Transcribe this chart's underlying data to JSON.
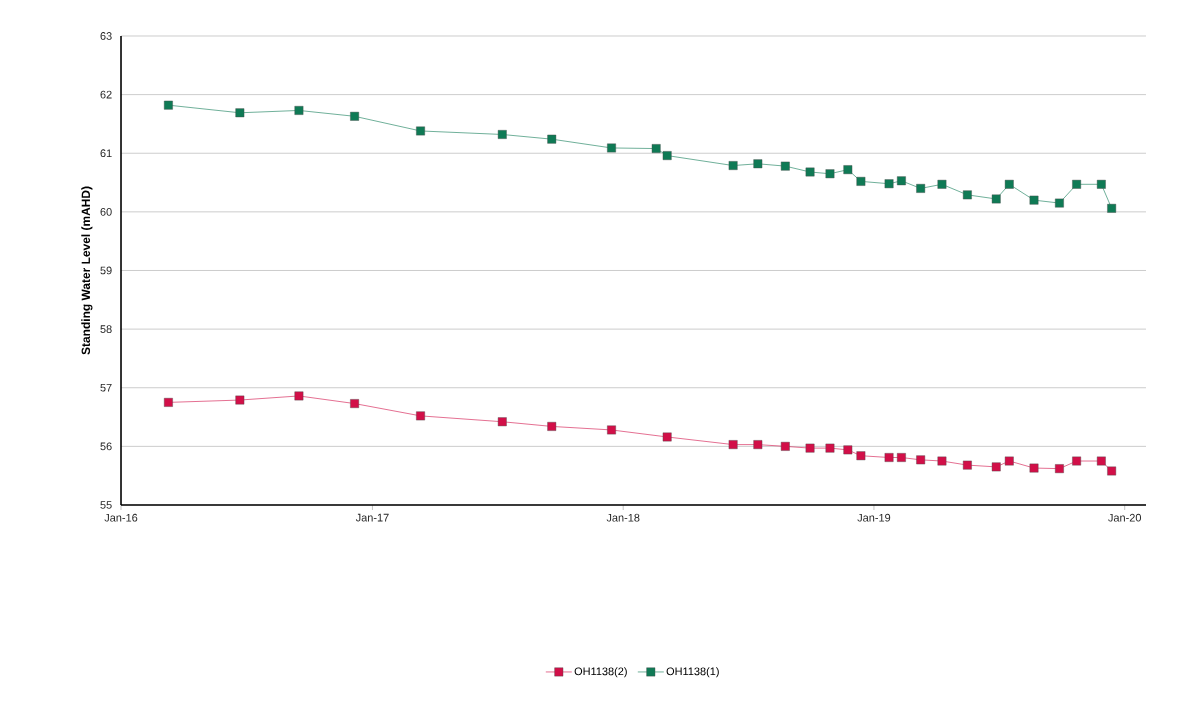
{
  "chart_data": {
    "type": "line",
    "ylabel": "Standing Water Level (mAHD)",
    "xlim": [
      "2016-01-01",
      "2020-02-01"
    ],
    "xticks": [
      {
        "value": "2016-01-01",
        "label": "Jan-16"
      },
      {
        "value": "2017-01-01",
        "label": "Jan-17"
      },
      {
        "value": "2018-01-01",
        "label": "Jan-18"
      },
      {
        "value": "2019-01-01",
        "label": "Jan-19"
      },
      {
        "value": "2020-01-01",
        "label": "Jan-20"
      }
    ],
    "ylim": [
      55,
      63
    ],
    "yticks": [
      55,
      56,
      57,
      58,
      59,
      60,
      61,
      62,
      63
    ],
    "grid": "y",
    "legend": "bottom",
    "marker": "square",
    "line_style": "solid",
    "series": [
      {
        "name": "OH1138(2)",
        "color": "#d20f48",
        "x": [
          "2016-03-10",
          "2016-06-22",
          "2016-09-16",
          "2016-12-06",
          "2017-03-12",
          "2017-07-09",
          "2017-09-19",
          "2017-12-15",
          "2018-03-06",
          "2018-06-10",
          "2018-07-16",
          "2018-08-25",
          "2018-09-30",
          "2018-10-29",
          "2018-11-24",
          "2018-12-13",
          "2019-01-23",
          "2019-02-10",
          "2019-03-10",
          "2019-04-10",
          "2019-05-17",
          "2019-06-28",
          "2019-07-17",
          "2019-08-22",
          "2019-09-28",
          "2019-10-23",
          "2019-11-28",
          "2019-12-13"
        ],
        "values": [
          56.75,
          56.79,
          56.86,
          56.73,
          56.52,
          56.42,
          56.34,
          56.28,
          56.16,
          56.03,
          56.03,
          56.0,
          55.97,
          55.97,
          55.94,
          55.84,
          55.81,
          55.81,
          55.77,
          55.75,
          55.68,
          55.65,
          55.75,
          55.63,
          55.62,
          55.75,
          55.75,
          55.58
        ]
      },
      {
        "name": "OH1138(1)",
        "color": "#0f7a55",
        "x": [
          "2016-03-10",
          "2016-06-22",
          "2016-09-16",
          "2016-12-06",
          "2017-03-12",
          "2017-07-09",
          "2017-09-19",
          "2017-12-15",
          "2018-02-18",
          "2018-03-06",
          "2018-06-10",
          "2018-07-16",
          "2018-08-25",
          "2018-09-30",
          "2018-10-29",
          "2018-11-24",
          "2018-12-13",
          "2019-01-23",
          "2019-02-10",
          "2019-03-10",
          "2019-04-10",
          "2019-05-17",
          "2019-06-28",
          "2019-07-17",
          "2019-08-22",
          "2019-09-28",
          "2019-10-23",
          "2019-11-28",
          "2019-12-13"
        ],
        "values": [
          61.82,
          61.69,
          61.73,
          61.63,
          61.38,
          61.32,
          61.24,
          61.09,
          61.08,
          60.96,
          60.79,
          60.82,
          60.78,
          60.68,
          60.65,
          60.72,
          60.52,
          60.48,
          60.53,
          60.4,
          60.47,
          60.29,
          60.22,
          60.47,
          60.2,
          60.15,
          60.47,
          60.47,
          60.06
        ]
      }
    ]
  }
}
